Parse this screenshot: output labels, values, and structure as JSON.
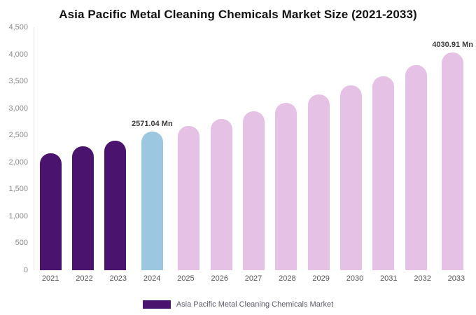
{
  "title": "Asia Pacific Metal Cleaning Chemicals Market Size (2021-2033)",
  "legend": {
    "label": "Asia Pacific Metal Cleaning Chemicals Market",
    "swatch_color": "#4a136e"
  },
  "colors": {
    "historical": "#4a136e",
    "current": "#9cc7e0",
    "forecast": "#e5c1e5"
  },
  "chart_data": {
    "type": "bar",
    "title": "Asia Pacific Metal Cleaning Chemicals Market Size (2021-2033)",
    "xlabel": "",
    "ylabel": "",
    "ylim": [
      0,
      4500
    ],
    "grid": false,
    "legend_position": "bottom",
    "categories": [
      "2021",
      "2022",
      "2023",
      "2024",
      "2025",
      "2026",
      "2027",
      "2028",
      "2029",
      "2030",
      "2031",
      "2032",
      "2033"
    ],
    "values": [
      2170,
      2290,
      2400,
      2571.04,
      2670,
      2800,
      2950,
      3100,
      3260,
      3420,
      3590,
      3800,
      4030.91
    ],
    "bar_colors": [
      "#4a136e",
      "#4a136e",
      "#4a136e",
      "#9cc7e0",
      "#e5c1e5",
      "#e5c1e5",
      "#e5c1e5",
      "#e5c1e5",
      "#e5c1e5",
      "#e5c1e5",
      "#e5c1e5",
      "#e5c1e5",
      "#e5c1e5"
    ],
    "ytick_labels": [
      "0",
      "500",
      "1,000",
      "1,500",
      "2,000",
      "2,500",
      "3,000",
      "3,500",
      "4,000",
      "4,500"
    ],
    "ytick_values": [
      0,
      500,
      1000,
      1500,
      2000,
      2500,
      3000,
      3500,
      4000,
      4500
    ],
    "annotations": [
      {
        "category": "2024",
        "index": 3,
        "text": "2571.04 Mn"
      },
      {
        "category": "2033",
        "index": 12,
        "text": "4030.91 Mn"
      }
    ]
  }
}
